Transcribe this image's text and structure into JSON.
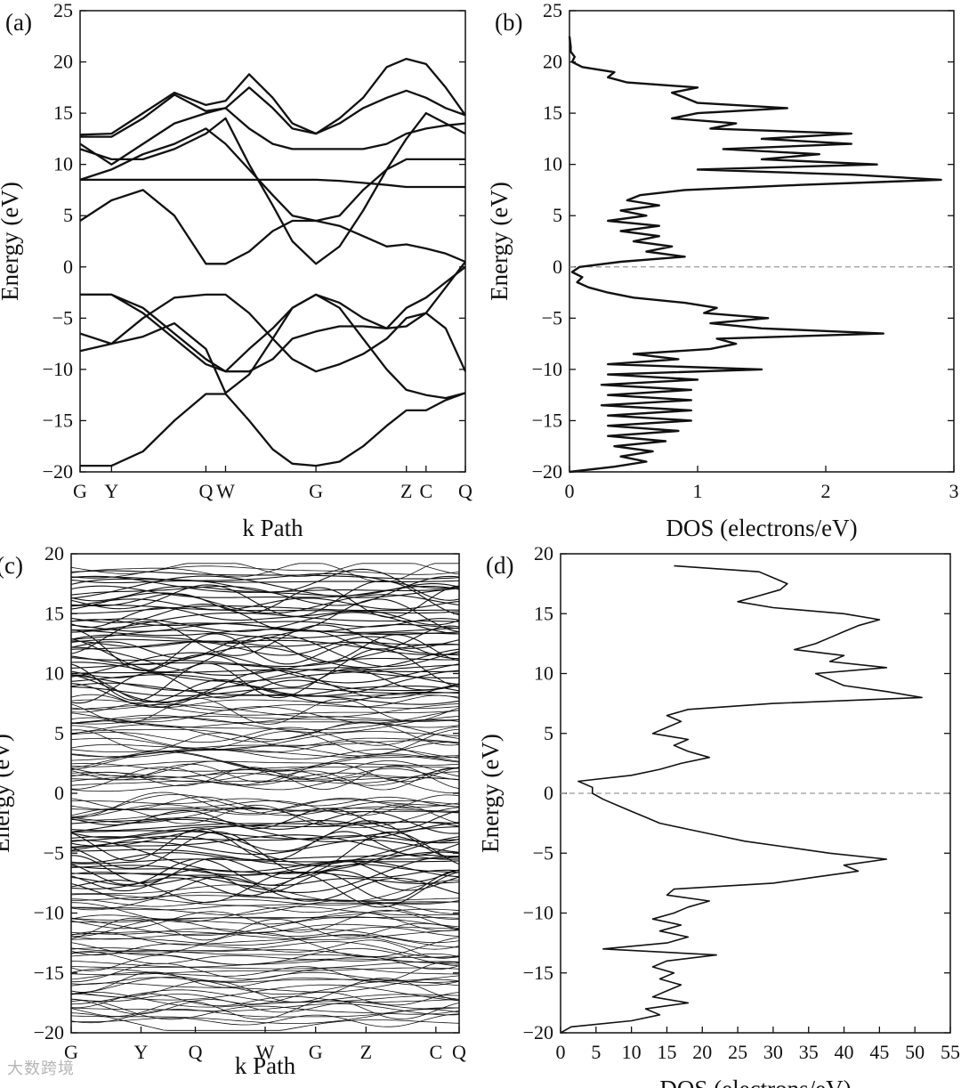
{
  "watermark": "大数跨境",
  "chart_data": [
    {
      "id": "a",
      "type": "line",
      "panel_label": "(a)",
      "title": "",
      "xlabel": "k Path",
      "ylabel": "Energy (eV)",
      "ylim": [
        -20,
        25
      ],
      "yticks": [
        -20,
        -15,
        -10,
        -5,
        0,
        5,
        10,
        15,
        20,
        25
      ],
      "x_ticks": [
        {
          "label": "G",
          "k": 0.0
        },
        {
          "label": "Y",
          "k": 0.8
        },
        {
          "label": "Q",
          "k": 3.2
        },
        {
          "label": "W",
          "k": 3.7
        },
        {
          "label": "G",
          "k": 6.0
        },
        {
          "label": "Z",
          "k": 8.3
        },
        {
          "label": "C",
          "k": 8.8
        },
        {
          "label": "Q",
          "k": 9.8
        }
      ],
      "x": [
        0.0,
        0.8,
        1.6,
        2.4,
        3.2,
        3.7,
        4.3,
        4.9,
        5.4,
        6.0,
        6.6,
        7.2,
        7.8,
        8.3,
        8.8,
        9.3,
        9.8
      ],
      "series": [
        {
          "name": "band 1",
          "values": [
            -19.4,
            -19.4,
            -18.0,
            -15.0,
            -12.4,
            -12.4,
            -15.0,
            -17.8,
            -19.2,
            -19.4,
            -19.0,
            -17.5,
            -15.5,
            -14.0,
            -14.0,
            -13.0,
            -12.3
          ]
        },
        {
          "name": "band 2",
          "values": [
            -6.5,
            -7.5,
            -6.8,
            -5.5,
            -8.0,
            -12.3,
            -10.5,
            -7.0,
            -4.0,
            -2.7,
            -4.0,
            -7.0,
            -10.0,
            -12.0,
            -12.5,
            -12.8,
            -12.3
          ]
        },
        {
          "name": "band 3",
          "values": [
            -8.2,
            -7.5,
            -5.0,
            -3.0,
            -2.7,
            -2.7,
            -4.5,
            -7.0,
            -9.0,
            -10.2,
            -9.5,
            -8.5,
            -7.0,
            -5.0,
            -4.5,
            -6.0,
            -10.2
          ]
        },
        {
          "name": "band 4",
          "values": [
            -2.7,
            -2.7,
            -4.0,
            -6.5,
            -9.0,
            -10.2,
            -10.2,
            -9.0,
            -7.0,
            -6.3,
            -5.8,
            -5.8,
            -6.0,
            -4.0,
            -3.0,
            -1.5,
            0.0
          ]
        },
        {
          "name": "band 5",
          "values": [
            -2.7,
            -2.7,
            -4.5,
            -7.0,
            -9.5,
            -10.2,
            -8.0,
            -6.0,
            -4.0,
            -2.7,
            -3.5,
            -5.0,
            -6.0,
            -5.8,
            -4.5,
            -2.0,
            0.5
          ]
        },
        {
          "name": "band 6",
          "values": [
            4.5,
            6.5,
            7.5,
            5.0,
            0.3,
            0.3,
            1.5,
            3.5,
            4.5,
            4.5,
            4.0,
            3.0,
            2.0,
            2.2,
            1.8,
            1.3,
            0.5
          ]
        },
        {
          "name": "band 7",
          "values": [
            8.5,
            9.5,
            11.0,
            12.0,
            13.5,
            12.0,
            9.5,
            7.0,
            5.0,
            4.5,
            5.0,
            7.5,
            9.5,
            10.5,
            10.5,
            10.5,
            10.5
          ]
        },
        {
          "name": "band 8",
          "values": [
            8.5,
            8.5,
            8.5,
            8.5,
            8.5,
            8.5,
            8.5,
            8.5,
            8.5,
            8.5,
            8.4,
            8.2,
            8.0,
            7.8,
            7.8,
            7.8,
            7.8
          ]
        },
        {
          "name": "band 9",
          "values": [
            11.5,
            10.5,
            10.5,
            11.5,
            13.0,
            14.5,
            10.0,
            6.0,
            2.5,
            0.3,
            2.0,
            5.5,
            9.5,
            12.5,
            15.0,
            14.0,
            13.0
          ]
        },
        {
          "name": "band 10",
          "values": [
            12.0,
            10.0,
            12.0,
            14.0,
            15.0,
            15.5,
            13.5,
            12.0,
            11.5,
            11.5,
            11.5,
            11.5,
            12.0,
            13.0,
            13.5,
            13.8,
            14.0
          ]
        },
        {
          "name": "band 11",
          "values": [
            12.7,
            12.7,
            14.5,
            16.8,
            15.2,
            15.5,
            17.5,
            15.5,
            13.5,
            13.0,
            14.5,
            16.5,
            19.5,
            20.3,
            19.8,
            17.5,
            14.8
          ]
        },
        {
          "name": "band 12",
          "values": [
            12.9,
            13.0,
            15.0,
            17.0,
            15.8,
            16.2,
            18.8,
            16.5,
            14.0,
            13.0,
            14.0,
            15.5,
            16.5,
            17.2,
            16.5,
            15.5,
            14.8
          ]
        }
      ]
    },
    {
      "id": "b",
      "type": "line",
      "panel_label": "(b)",
      "title": "",
      "xlabel": "DOS (electrons/eV)",
      "ylabel": "Energy (eV)",
      "xlim": [
        0,
        3
      ],
      "ylim": [
        -20,
        25
      ],
      "xticks": [
        0,
        1,
        2,
        3
      ],
      "yticks": [
        -20,
        -15,
        -10,
        -5,
        0,
        5,
        10,
        15,
        20,
        25
      ],
      "fermi_level": 0,
      "energy": [
        -20,
        -19.5,
        -19,
        -18.5,
        -18,
        -17.5,
        -17,
        -16.5,
        -16,
        -15.5,
        -15,
        -14.5,
        -14,
        -13.5,
        -13,
        -12.5,
        -12,
        -11.5,
        -11,
        -10.5,
        -10,
        -9.5,
        -9,
        -8.5,
        -8,
        -7.5,
        -7,
        -6.5,
        -6,
        -5.5,
        -5,
        -4.5,
        -4,
        -3.5,
        -3,
        -2.5,
        -2,
        -1.5,
        -1,
        -0.5,
        0,
        0.5,
        1,
        1.5,
        2,
        2.5,
        3,
        3.5,
        4,
        4.5,
        5,
        5.5,
        6,
        6.5,
        7,
        7.5,
        8,
        8.5,
        9,
        9.5,
        10,
        10.5,
        11,
        11.5,
        12,
        12.5,
        13,
        13.5,
        14,
        14.5,
        15,
        15.5,
        16,
        16.5,
        17,
        17.5,
        18,
        18.5,
        19,
        19.5,
        20,
        20.5,
        21,
        21.5,
        22,
        22.5
      ],
      "dos": [
        0,
        0.35,
        0.6,
        0.4,
        0.65,
        0.35,
        0.75,
        0.3,
        0.85,
        0.3,
        0.95,
        0.3,
        0.95,
        0.25,
        0.95,
        0.3,
        0.95,
        0.25,
        1.0,
        0.3,
        1.5,
        0.3,
        0.85,
        0.5,
        1.1,
        1.3,
        1.15,
        2.45,
        1.5,
        1.1,
        1.55,
        1.05,
        1.15,
        0.9,
        0.5,
        0.3,
        0.15,
        0.06,
        0.1,
        0.02,
        0.08,
        0.4,
        0.9,
        0.6,
        0.8,
        0.5,
        0.7,
        0.4,
        0.7,
        0.3,
        0.6,
        0.4,
        0.7,
        0.45,
        0.55,
        0.9,
        1.8,
        2.9,
        2.2,
        1.0,
        2.4,
        1.5,
        1.95,
        1.2,
        2.2,
        1.5,
        2.2,
        1.1,
        1.3,
        0.8,
        1.0,
        1.7,
        1.0,
        0.9,
        0.8,
        1.0,
        0.45,
        0.3,
        0.35,
        0.1,
        0.02,
        0.04,
        0.01,
        0.01,
        0.005,
        0.0
      ]
    },
    {
      "id": "c",
      "type": "line",
      "panel_label": "(c)",
      "title": "",
      "xlabel": "k Path",
      "ylabel": "Energy (eV)",
      "ylim": [
        -20,
        20
      ],
      "yticks": [
        -20,
        -15,
        -10,
        -5,
        0,
        5,
        10,
        15,
        20
      ],
      "x_ticks": [
        "G",
        "Y",
        "Q",
        "W",
        "G",
        "Z",
        "C",
        "Q"
      ],
      "band_count": 180,
      "band_energy_range": [
        -19.2,
        18.8
      ]
    },
    {
      "id": "d",
      "type": "line",
      "panel_label": "(d)",
      "title": "",
      "xlabel": "DOS (electrons/eV)",
      "ylabel": "Energy (eV)",
      "xlim": [
        0,
        55
      ],
      "ylim": [
        -20,
        20
      ],
      "xticks": [
        0,
        5,
        10,
        15,
        20,
        25,
        30,
        35,
        40,
        45,
        50,
        55
      ],
      "yticks": [
        -20,
        -15,
        -10,
        -5,
        0,
        5,
        10,
        15,
        20
      ],
      "fermi_level": 0,
      "energy": [
        -20,
        -19.5,
        -19,
        -18.5,
        -18,
        -17.5,
        -17,
        -16.5,
        -16,
        -15.5,
        -15,
        -14.5,
        -14,
        -13.5,
        -13,
        -12.5,
        -12,
        -11.5,
        -11,
        -10.5,
        -10,
        -9.5,
        -9,
        -8.5,
        -8,
        -7.5,
        -7,
        -6.5,
        -6,
        -5.5,
        -5,
        -4.5,
        -4,
        -3.5,
        -3,
        -2.5,
        -2,
        -1.5,
        -1,
        -0.5,
        0,
        0.5,
        1,
        1.5,
        2,
        2.5,
        3,
        3.5,
        4,
        4.5,
        5,
        5.5,
        6,
        6.5,
        7,
        7.5,
        8,
        8.5,
        9,
        9.5,
        10,
        10.5,
        11,
        11.5,
        12,
        12.5,
        13,
        13.5,
        14,
        14.5,
        15,
        15.5,
        16,
        16.5,
        17,
        17.5,
        18,
        18.5,
        19
      ],
      "dos": [
        0,
        1.5,
        10,
        14,
        12,
        18,
        13,
        15,
        17,
        14,
        16,
        13,
        15,
        22,
        6,
        15,
        18,
        14,
        17,
        13,
        16,
        18,
        21,
        15,
        16,
        30,
        36,
        42,
        40,
        46,
        38,
        32,
        26,
        22,
        18,
        14,
        12,
        10,
        8,
        6,
        4.5,
        4.5,
        2.5,
        10,
        14,
        17,
        21,
        18,
        16,
        18,
        13,
        15,
        17,
        15,
        18,
        30,
        51,
        46,
        40,
        38,
        36,
        46,
        38,
        40,
        33,
        36,
        38,
        40,
        42,
        45,
        40,
        30,
        25,
        28,
        31,
        32,
        30,
        28,
        16
      ],
      "fermi_label": ""
    }
  ]
}
